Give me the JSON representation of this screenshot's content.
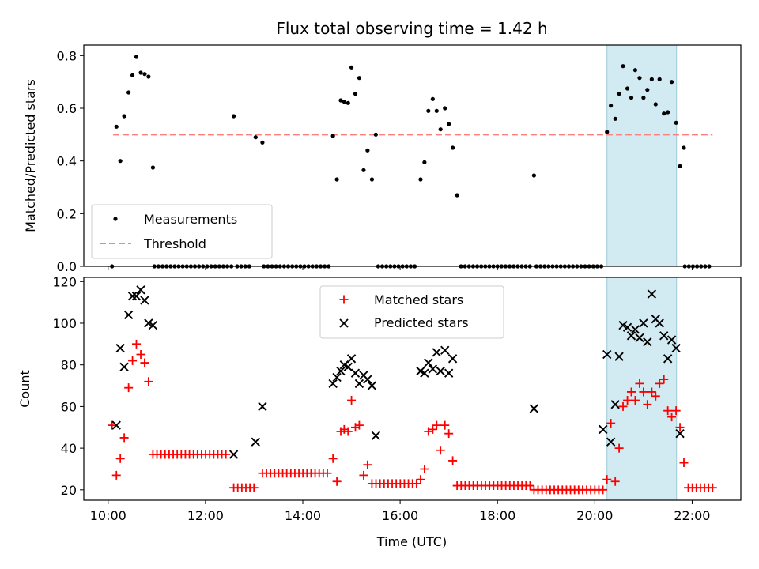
{
  "chart_data": {
    "type": "scatter",
    "title": "Flux total observing time = 1.42 h",
    "highlight": {
      "x_range": [
        20.25,
        21.68
      ],
      "color": "#add8e6"
    },
    "colors": {
      "measurements": "#000000",
      "threshold": "#ff7f7f",
      "matched": "#ff0000",
      "predicted": "#000000"
    },
    "x_axis": {
      "label": "Time (UTC)",
      "range": [
        9.5,
        23.0
      ],
      "ticks": [
        10,
        12,
        14,
        16,
        18,
        20,
        22
      ],
      "tick_labels": [
        "10:00",
        "12:00",
        "14:00",
        "16:00",
        "18:00",
        "20:00",
        "22:00"
      ]
    },
    "top": {
      "ylabel": "Matched/Predicted stars",
      "ylim": [
        0,
        0.84
      ],
      "yticks": [
        0,
        0.2,
        0.4,
        0.6,
        0.8
      ],
      "ytick_labels": [
        "0.0",
        "0.2",
        "0.4",
        "0.6",
        "0.8"
      ],
      "legend": {
        "position": "lower-left",
        "entries": [
          "Measurements",
          "Threshold"
        ]
      },
      "threshold": {
        "name": "Threshold",
        "y": 0.5,
        "x_range": [
          10.1,
          22.42
        ]
      },
      "measurements": {
        "name": "Measurements",
        "x": [
          10.08,
          10.17,
          10.25,
          10.33,
          10.42,
          10.5,
          10.58,
          10.67,
          10.75,
          10.83,
          10.92,
          12.58,
          13.03,
          13.17,
          14.62,
          14.7,
          14.78,
          14.85,
          14.93,
          15.0,
          15.08,
          15.16,
          15.25,
          15.33,
          15.42,
          15.5,
          16.42,
          16.5,
          16.58,
          16.67,
          16.75,
          16.83,
          16.92,
          17.0,
          17.08,
          17.17,
          18.75,
          20.25,
          20.33,
          20.42,
          20.5,
          20.58,
          20.67,
          20.75,
          20.83,
          20.92,
          21.0,
          21.08,
          21.17,
          21.25,
          21.33,
          21.42,
          21.5,
          21.58,
          21.67,
          21.75,
          21.83
        ],
        "y": [
          0.0,
          0.53,
          0.4,
          0.57,
          0.66,
          0.725,
          0.795,
          0.735,
          0.73,
          0.72,
          0.375,
          0.57,
          0.49,
          0.47,
          0.495,
          0.33,
          0.63,
          0.625,
          0.62,
          0.755,
          0.655,
          0.715,
          0.365,
          0.44,
          0.33,
          0.5,
          0.33,
          0.395,
          0.59,
          0.635,
          0.59,
          0.52,
          0.6,
          0.54,
          0.45,
          0.27,
          0.345,
          0.51,
          0.61,
          0.56,
          0.655,
          0.76,
          0.675,
          0.64,
          0.745,
          0.715,
          0.64,
          0.67,
          0.71,
          0.615,
          0.71,
          0.58,
          0.585,
          0.7,
          0.545,
          0.38,
          0.45
        ],
        "zero_segments": [
          [
            10.95,
            12.55
          ],
          [
            12.65,
            12.95
          ],
          [
            13.2,
            14.55
          ],
          [
            15.55,
            16.35
          ],
          [
            17.25,
            18.7
          ],
          [
            18.8,
            20.2
          ],
          [
            21.85,
            22.42
          ]
        ],
        "zero_step": 0.0833
      }
    },
    "bottom": {
      "ylabel": "Count",
      "ylim": [
        15,
        122
      ],
      "yticks": [
        20,
        40,
        60,
        80,
        100,
        120
      ],
      "ytick_labels": [
        "20",
        "40",
        "60",
        "80",
        "100",
        "120"
      ],
      "legend": {
        "position": "upper-center",
        "entries": [
          "Matched stars",
          "Predicted stars"
        ]
      },
      "matched": {
        "name": "Matched stars",
        "points": [
          [
            10.08,
            51
          ],
          [
            10.17,
            27
          ],
          [
            10.25,
            35
          ],
          [
            10.33,
            45
          ],
          [
            10.42,
            69
          ],
          [
            10.5,
            82
          ],
          [
            10.58,
            90
          ],
          [
            10.67,
            85
          ],
          [
            10.75,
            81
          ],
          [
            10.83,
            72
          ],
          [
            14.62,
            35
          ],
          [
            14.7,
            24
          ],
          [
            14.78,
            48
          ],
          [
            14.85,
            49
          ],
          [
            14.93,
            48
          ],
          [
            15.0,
            63
          ],
          [
            15.08,
            50
          ],
          [
            15.16,
            51
          ],
          [
            15.25,
            27
          ],
          [
            15.33,
            32
          ],
          [
            16.42,
            25
          ],
          [
            16.5,
            30
          ],
          [
            16.58,
            48
          ],
          [
            16.67,
            49
          ],
          [
            16.75,
            51
          ],
          [
            16.83,
            39
          ],
          [
            16.92,
            51
          ],
          [
            17.0,
            47
          ],
          [
            17.08,
            34
          ],
          [
            20.25,
            25
          ],
          [
            20.33,
            52
          ],
          [
            20.42,
            24
          ],
          [
            20.5,
            40
          ],
          [
            20.58,
            60
          ],
          [
            20.67,
            63
          ],
          [
            20.75,
            67
          ],
          [
            20.83,
            63
          ],
          [
            20.92,
            71
          ],
          [
            21.0,
            67
          ],
          [
            21.08,
            61
          ],
          [
            21.17,
            67
          ],
          [
            21.25,
            65
          ],
          [
            21.33,
            71
          ],
          [
            21.42,
            73
          ],
          [
            21.5,
            58
          ],
          [
            21.58,
            55
          ],
          [
            21.67,
            58
          ],
          [
            21.75,
            50
          ],
          [
            21.83,
            33
          ]
        ],
        "flat_segments": [
          {
            "x_range": [
              10.92,
              12.5
            ],
            "y": 37
          },
          {
            "x_range": [
              12.58,
              13.0
            ],
            "y": 21
          },
          {
            "x_range": [
              13.17,
              14.55
            ],
            "y": 28
          },
          {
            "x_range": [
              15.42,
              16.35
            ],
            "y": 23
          },
          {
            "x_range": [
              17.17,
              18.67
            ],
            "y": 22
          },
          {
            "x_range": [
              18.75,
              20.17
            ],
            "y": 20
          },
          {
            "x_range": [
              21.92,
              22.42
            ],
            "y": 21
          }
        ],
        "flat_step": 0.0833
      },
      "predicted": {
        "name": "Predicted stars",
        "points": [
          [
            10.17,
            51
          ],
          [
            10.25,
            88
          ],
          [
            10.33,
            79
          ],
          [
            10.42,
            104
          ],
          [
            10.5,
            113
          ],
          [
            10.58,
            113
          ],
          [
            10.67,
            116
          ],
          [
            10.75,
            111
          ],
          [
            10.83,
            100
          ],
          [
            10.92,
            99
          ],
          [
            12.58,
            37
          ],
          [
            13.03,
            43
          ],
          [
            13.17,
            60
          ],
          [
            14.62,
            71
          ],
          [
            14.7,
            74
          ],
          [
            14.78,
            77
          ],
          [
            14.85,
            80
          ],
          [
            14.93,
            79
          ],
          [
            15.0,
            83
          ],
          [
            15.08,
            76
          ],
          [
            15.16,
            71
          ],
          [
            15.25,
            75
          ],
          [
            15.33,
            73
          ],
          [
            15.42,
            70
          ],
          [
            15.5,
            46
          ],
          [
            16.42,
            77
          ],
          [
            16.5,
            76
          ],
          [
            16.58,
            81
          ],
          [
            16.67,
            78
          ],
          [
            16.75,
            86
          ],
          [
            16.83,
            77
          ],
          [
            16.92,
            87
          ],
          [
            17.0,
            76
          ],
          [
            17.08,
            83
          ],
          [
            18.75,
            59
          ],
          [
            20.17,
            49
          ],
          [
            20.25,
            85
          ],
          [
            20.33,
            43
          ],
          [
            20.42,
            61
          ],
          [
            20.5,
            84
          ],
          [
            20.58,
            99
          ],
          [
            20.67,
            98
          ],
          [
            20.75,
            94
          ],
          [
            20.83,
            97
          ],
          [
            20.92,
            93
          ],
          [
            21.0,
            100
          ],
          [
            21.08,
            91
          ],
          [
            21.17,
            114
          ],
          [
            21.25,
            102
          ],
          [
            21.33,
            100
          ],
          [
            21.42,
            94
          ],
          [
            21.5,
            83
          ],
          [
            21.58,
            92
          ],
          [
            21.67,
            88
          ],
          [
            21.75,
            47
          ]
        ]
      }
    }
  }
}
